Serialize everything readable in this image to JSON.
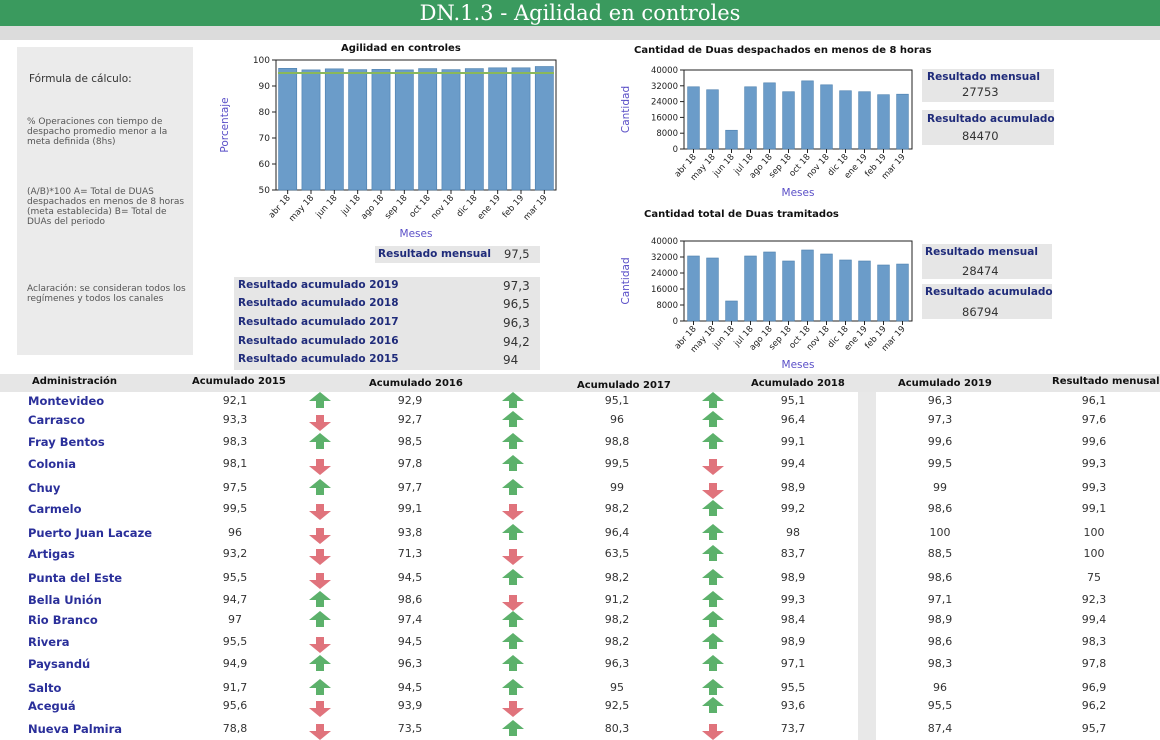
{
  "title": "DN.1.3 - Agilidad en controles",
  "formula": {
    "title": "Fórmula de cálculo:",
    "p1": "% Operaciones con tiempo de despacho promedio menor a la meta definida (8hs)",
    "p2": "(A/B)*100 A= Total de DUAS despachados en menos de 8 horas (meta establecida) B= Total de DUAs del periodo",
    "p3": "Aclaración: se consideran todos los regímenes y todos los canales"
  },
  "colors": {
    "header_green": "#3a9a5e",
    "bar_blue": "#6b9cc9",
    "target_line": "#8ab85a",
    "label_navy": "#1f2b7a",
    "axis_purple": "#5a4fc7",
    "arrow_up": "#5cb16b",
    "arrow_down": "#e0737c"
  },
  "chart_data": [
    {
      "type": "bar",
      "title": "Agilidad en controles",
      "xlabel": "Meses",
      "ylabel": "Porcentaje",
      "categories": [
        "abr 18",
        "may 18",
        "jun 18",
        "jul 18",
        "ago 18",
        "sep 18",
        "oct 18",
        "nov 18",
        "dic 18",
        "ene 19",
        "feb 19",
        "mar 19"
      ],
      "values": [
        96.8,
        96.2,
        96.6,
        96.3,
        96.4,
        96.2,
        96.7,
        96.3,
        96.7,
        97.0,
        97.0,
        97.5
      ],
      "reference_line": 95,
      "ylim": [
        50,
        100
      ],
      "yticks": [
        50,
        60,
        70,
        80,
        90,
        100
      ]
    },
    {
      "type": "bar",
      "title": "Cantidad de Duas despachados en menos de 8 horas",
      "xlabel": "Meses",
      "ylabel": "Cantidad",
      "categories": [
        "abr 18",
        "may 18",
        "jun 18",
        "jul 18",
        "ago 18",
        "sep 18",
        "oct 18",
        "nov 18",
        "dic 18",
        "ene 19",
        "feb 19",
        "mar 19"
      ],
      "values": [
        31500,
        30000,
        9500,
        31500,
        33500,
        29000,
        34500,
        32500,
        29500,
        29000,
        27500,
        27753
      ],
      "ylim": [
        0,
        40000
      ],
      "yticks": [
        0,
        8000,
        16000,
        24000,
        32000,
        40000
      ]
    },
    {
      "type": "bar",
      "title": "Cantidad total de Duas tramitados",
      "xlabel": "Meses",
      "ylabel": "Cantidad",
      "categories": [
        "abr 18",
        "may 18",
        "jun 18",
        "jul 18",
        "ago 18",
        "sep 18",
        "oct 18",
        "nov 18",
        "dic 18",
        "ene 19",
        "feb 19",
        "mar 19"
      ],
      "values": [
        32500,
        31500,
        10000,
        32500,
        34500,
        30000,
        35500,
        33500,
        30500,
        30000,
        28000,
        28474
      ],
      "ylim": [
        0,
        40000
      ],
      "yticks": [
        0,
        8000,
        16000,
        24000,
        32000,
        40000
      ]
    }
  ],
  "chart1_result": {
    "label": "Resultado mensual",
    "value": "97,5"
  },
  "chart2_results": {
    "mensual_label": "Resultado mensual",
    "mensual_value": "27753",
    "acum_label": "Resultado acumulado",
    "acum_value": "84470"
  },
  "chart3_results": {
    "mensual_label": "Resultado mensual",
    "mensual_value": "28474",
    "acum_label": "Resultado acumulado",
    "acum_value": "86794"
  },
  "accumulated": [
    {
      "label": "Resultado acumulado 2019",
      "value": "97,3"
    },
    {
      "label": "Resultado acumulado 2018",
      "value": "96,5"
    },
    {
      "label": "Resultado acumulado 2017",
      "value": "96,3"
    },
    {
      "label": "Resultado acumulado 2016",
      "value": "94,2"
    },
    {
      "label": "Resultado acumulado 2015",
      "value": "94"
    }
  ],
  "table": {
    "headers": [
      "Administración",
      "Acumulado 2015",
      "Acumulado 2016",
      "Acumulado 2017",
      "Acumulado 2018",
      "Acumulado 2019",
      "Resultado menusal"
    ],
    "rows": [
      {
        "name": "Montevideo",
        "a2015": "92,1",
        "t1": "up",
        "a2016": "92,9",
        "t2": "up",
        "a2017": "95,1",
        "t3": "up",
        "a2018": "95,1",
        "a2019": "96,3",
        "mensual": "96,1"
      },
      {
        "name": "Carrasco",
        "a2015": "93,3",
        "t1": "down",
        "a2016": "92,7",
        "t2": "up",
        "a2017": "96",
        "t3": "up",
        "a2018": "96,4",
        "a2019": "97,3",
        "mensual": "97,6"
      },
      {
        "name": "Fray Bentos",
        "a2015": "98,3",
        "t1": "up",
        "a2016": "98,5",
        "t2": "up",
        "a2017": "98,8",
        "t3": "up",
        "a2018": "99,1",
        "a2019": "99,6",
        "mensual": "99,6"
      },
      {
        "name": "Colonia",
        "a2015": "98,1",
        "t1": "down",
        "a2016": "97,8",
        "t2": "up",
        "a2017": "99,5",
        "t3": "down",
        "a2018": "99,4",
        "a2019": "99,5",
        "mensual": "99,3"
      },
      {
        "name": "Chuy",
        "a2015": "97,5",
        "t1": "up",
        "a2016": "97,7",
        "t2": "up",
        "a2017": "99",
        "t3": "down",
        "a2018": "98,9",
        "a2019": "99",
        "mensual": "99,3"
      },
      {
        "name": "Carmelo",
        "a2015": "99,5",
        "t1": "down",
        "a2016": "99,1",
        "t2": "down",
        "a2017": "98,2",
        "t3": "up",
        "a2018": "99,2",
        "a2019": "98,6",
        "mensual": "99,1"
      },
      {
        "name": "Puerto Juan Lacaze",
        "a2015": "96",
        "t1": "down",
        "a2016": "93,8",
        "t2": "up",
        "a2017": "96,4",
        "t3": "up",
        "a2018": "98",
        "a2019": "100",
        "mensual": "100"
      },
      {
        "name": "Artigas",
        "a2015": "93,2",
        "t1": "down",
        "a2016": "71,3",
        "t2": "down",
        "a2017": "63,5",
        "t3": "up",
        "a2018": "83,7",
        "a2019": "88,5",
        "mensual": "100"
      },
      {
        "name": "Punta del Este",
        "a2015": "95,5",
        "t1": "down",
        "a2016": "94,5",
        "t2": "up",
        "a2017": "98,2",
        "t3": "up",
        "a2018": "98,9",
        "a2019": "98,6",
        "mensual": "75"
      },
      {
        "name": "Bella Unión",
        "a2015": "94,7",
        "t1": "up",
        "a2016": "98,6",
        "t2": "down",
        "a2017": "91,2",
        "t3": "up",
        "a2018": "99,3",
        "a2019": "97,1",
        "mensual": "92,3"
      },
      {
        "name": "Rio Branco",
        "a2015": "97",
        "t1": "up",
        "a2016": "97,4",
        "t2": "up",
        "a2017": "98,2",
        "t3": "up",
        "a2018": "98,4",
        "a2019": "98,9",
        "mensual": "99,4"
      },
      {
        "name": "Rivera",
        "a2015": "95,5",
        "t1": "down",
        "a2016": "94,5",
        "t2": "up",
        "a2017": "98,2",
        "t3": "up",
        "a2018": "98,9",
        "a2019": "98,6",
        "mensual": "98,3"
      },
      {
        "name": "Paysandú",
        "a2015": "94,9",
        "t1": "up",
        "a2016": "96,3",
        "t2": "up",
        "a2017": "96,3",
        "t3": "up",
        "a2018": "97,1",
        "a2019": "98,3",
        "mensual": "97,8"
      },
      {
        "name": "Salto",
        "a2015": "91,7",
        "t1": "up",
        "a2016": "94,5",
        "t2": "up",
        "a2017": "95",
        "t3": "up",
        "a2018": "95,5",
        "a2019": "96",
        "mensual": "96,9"
      },
      {
        "name": "Aceguá",
        "a2015": "95,6",
        "t1": "down",
        "a2016": "93,9",
        "t2": "down",
        "a2017": "92,5",
        "t3": "up",
        "a2018": "93,6",
        "a2019": "95,5",
        "mensual": "96,2"
      },
      {
        "name": "Nueva Palmira",
        "a2015": "78,8",
        "t1": "down",
        "a2016": "73,5",
        "t2": "up",
        "a2017": "80,3",
        "t3": "down",
        "a2018": "73,7",
        "a2019": "87,4",
        "mensual": "95,7"
      }
    ]
  }
}
